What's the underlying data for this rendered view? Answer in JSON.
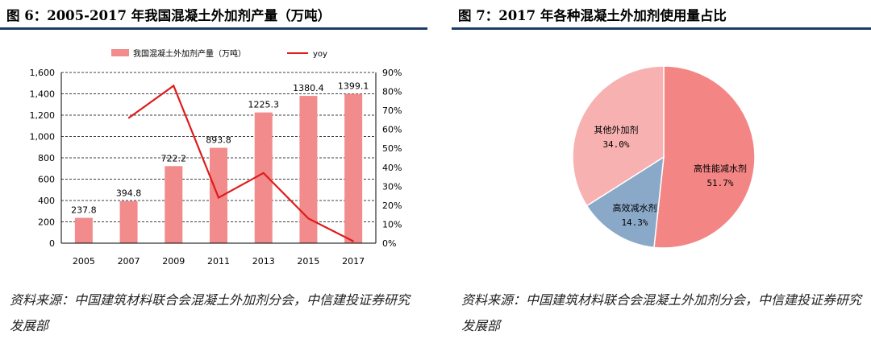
{
  "left": {
    "title": "图 6：2005-2017 年我国混凝土外加剂产量（万吨）",
    "source": "资料来源：中国建筑材料联合会混凝土外加剂分会，中信建投证券研究发展部"
  },
  "right": {
    "title": "图 7：2017 年各种混凝土外加剂使用量占比",
    "source": "资料来源：中国建筑材料联合会混凝土外加剂分会，中信建投证券研究发展部"
  },
  "chart_data": [
    {
      "type": "bar",
      "categories": [
        "2005",
        "2007",
        "2009",
        "2011",
        "2013",
        "2015",
        "2017"
      ],
      "series": [
        {
          "name": "我国混凝土外加剂产量（万吨）",
          "type": "bar",
          "axis": "left",
          "values": [
            237.8,
            394.8,
            722.2,
            893.8,
            1225.3,
            1380.4,
            1399.1
          ],
          "labels": [
            "237.8",
            "394.8",
            "722.2",
            "893.8",
            "1225.3",
            "1380.4",
            "1399.1"
          ]
        },
        {
          "name": "yoy",
          "type": "line",
          "axis": "right",
          "values": [
            null,
            0.66,
            0.83,
            0.24,
            0.37,
            0.13,
            0.01
          ]
        }
      ],
      "ylim": [
        0,
        1600
      ],
      "yticks": [
        "0",
        "200",
        "400",
        "600",
        "800",
        "1,000",
        "1,200",
        "1,400",
        "1,600"
      ],
      "y2lim": [
        0,
        0.9
      ],
      "y2ticks": [
        "0%",
        "10%",
        "20%",
        "30%",
        "40%",
        "50%",
        "60%",
        "70%",
        "80%",
        "90%"
      ],
      "grid": true,
      "legend": "top",
      "colors": {
        "bar": "#f28b8b",
        "line": "#e01b1b"
      }
    },
    {
      "type": "pie",
      "slices": [
        {
          "label": "高性能减水剂",
          "value": 51.7,
          "text": "51.7%",
          "color": "#f48585"
        },
        {
          "label": "高效减水剂",
          "value": 14.3,
          "text": "14.3%",
          "color": "#8aa9c8"
        },
        {
          "label": "其他外加剂",
          "value": 34.0,
          "text": "34.0%",
          "color": "#f7b1b1"
        }
      ]
    }
  ]
}
